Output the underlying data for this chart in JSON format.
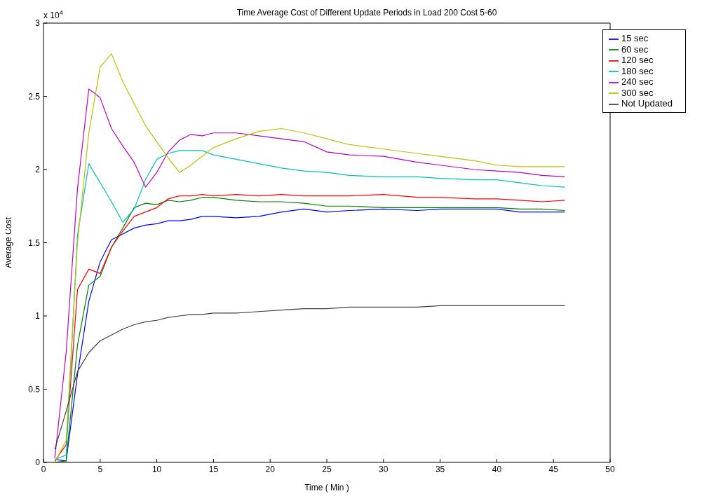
{
  "chart_data": {
    "type": "line",
    "title": "Time Average Cost of Different Update Periods in Load 200 Cost 5-60",
    "xlabel": "Time ( Min )",
    "ylabel": "Average Cost",
    "annotations": [
      "x 10$^{4}$"
    ],
    "x": [
      1,
      2,
      3,
      4,
      5,
      6,
      7,
      8,
      9,
      10,
      11,
      12,
      13,
      14,
      15,
      17,
      19,
      21,
      23,
      25,
      27,
      30,
      33,
      35,
      38,
      40,
      42,
      44,
      46
    ],
    "series": [
      {
        "name": "15 sec",
        "color": "#0000ff",
        "values": [
          0.02,
          0.01,
          0.6,
          1.1,
          1.37,
          1.52,
          1.56,
          1.6,
          1.62,
          1.63,
          1.65,
          1.65,
          1.66,
          1.68,
          1.68,
          1.67,
          1.68,
          1.71,
          1.73,
          1.71,
          1.72,
          1.73,
          1.72,
          1.73,
          1.73,
          1.73,
          1.71,
          1.71,
          1.71
        ]
      },
      {
        "name": "60 sec",
        "color": "#008000",
        "values": [
          0,
          0.01,
          0.8,
          1.21,
          1.27,
          1.47,
          1.6,
          1.74,
          1.77,
          1.76,
          1.79,
          1.78,
          1.79,
          1.81,
          1.81,
          1.79,
          1.78,
          1.78,
          1.77,
          1.75,
          1.75,
          1.74,
          1.74,
          1.74,
          1.74,
          1.74,
          1.73,
          1.73,
          1.72
        ]
      },
      {
        "name": "120 sec",
        "color": "#ff0000",
        "values": [
          0.01,
          0.12,
          1.18,
          1.32,
          1.29,
          1.47,
          1.58,
          1.68,
          1.71,
          1.74,
          1.8,
          1.82,
          1.82,
          1.83,
          1.82,
          1.83,
          1.82,
          1.83,
          1.82,
          1.82,
          1.82,
          1.83,
          1.81,
          1.81,
          1.8,
          1.8,
          1.79,
          1.78,
          1.79
        ]
      },
      {
        "name": "180 sec",
        "color": "#00bfbf",
        "values": [
          0.02,
          0.05,
          1.55,
          2.04,
          1.91,
          1.78,
          1.64,
          1.73,
          1.93,
          2.07,
          2.11,
          2.13,
          2.13,
          2.13,
          2.1,
          2.07,
          2.04,
          2.01,
          1.99,
          1.98,
          1.96,
          1.95,
          1.95,
          1.94,
          1.93,
          1.93,
          1.91,
          1.89,
          1.88
        ]
      },
      {
        "name": "240 sec",
        "color": "#bf00bf",
        "values": [
          0.03,
          0.75,
          1.87,
          2.55,
          2.49,
          2.28,
          2.16,
          2.05,
          1.88,
          1.98,
          2.12,
          2.2,
          2.24,
          2.23,
          2.25,
          2.25,
          2.23,
          2.21,
          2.19,
          2.12,
          2.1,
          2.09,
          2.05,
          2.03,
          2,
          1.99,
          1.98,
          1.96,
          1.95
        ]
      },
      {
        "name": "300 sec",
        "color": "#bfbf00",
        "values": [
          0,
          0.15,
          1.5,
          2.25,
          2.7,
          2.79,
          2.6,
          2.45,
          2.3,
          2.19,
          2.08,
          1.98,
          2.03,
          2.09,
          2.15,
          2.21,
          2.26,
          2.28,
          2.25,
          2.21,
          2.17,
          2.14,
          2.11,
          2.09,
          2.06,
          2.03,
          2.02,
          2.02,
          2.02
        ]
      },
      {
        "name": "Not Updated",
        "color": "#404040",
        "values": [
          0.09,
          0.35,
          0.62,
          0.75,
          0.83,
          0.87,
          0.91,
          0.94,
          0.96,
          0.97,
          0.99,
          1,
          1.01,
          1.01,
          1.02,
          1.02,
          1.03,
          1.04,
          1.05,
          1.05,
          1.06,
          1.06,
          1.06,
          1.07,
          1.07,
          1.07,
          1.07,
          1.07,
          1.07
        ]
      }
    ],
    "xlim": [
      0,
      50
    ],
    "xticks": [
      0,
      5,
      10,
      15,
      20,
      25,
      30,
      35,
      40,
      45,
      50
    ],
    "ylim": [
      0,
      3
    ],
    "yticks": [
      0,
      0.5,
      1,
      1.5,
      2,
      2.5,
      3
    ],
    "grid": false,
    "legend": "top right",
    "marker": "none",
    "line_style": "solid"
  }
}
